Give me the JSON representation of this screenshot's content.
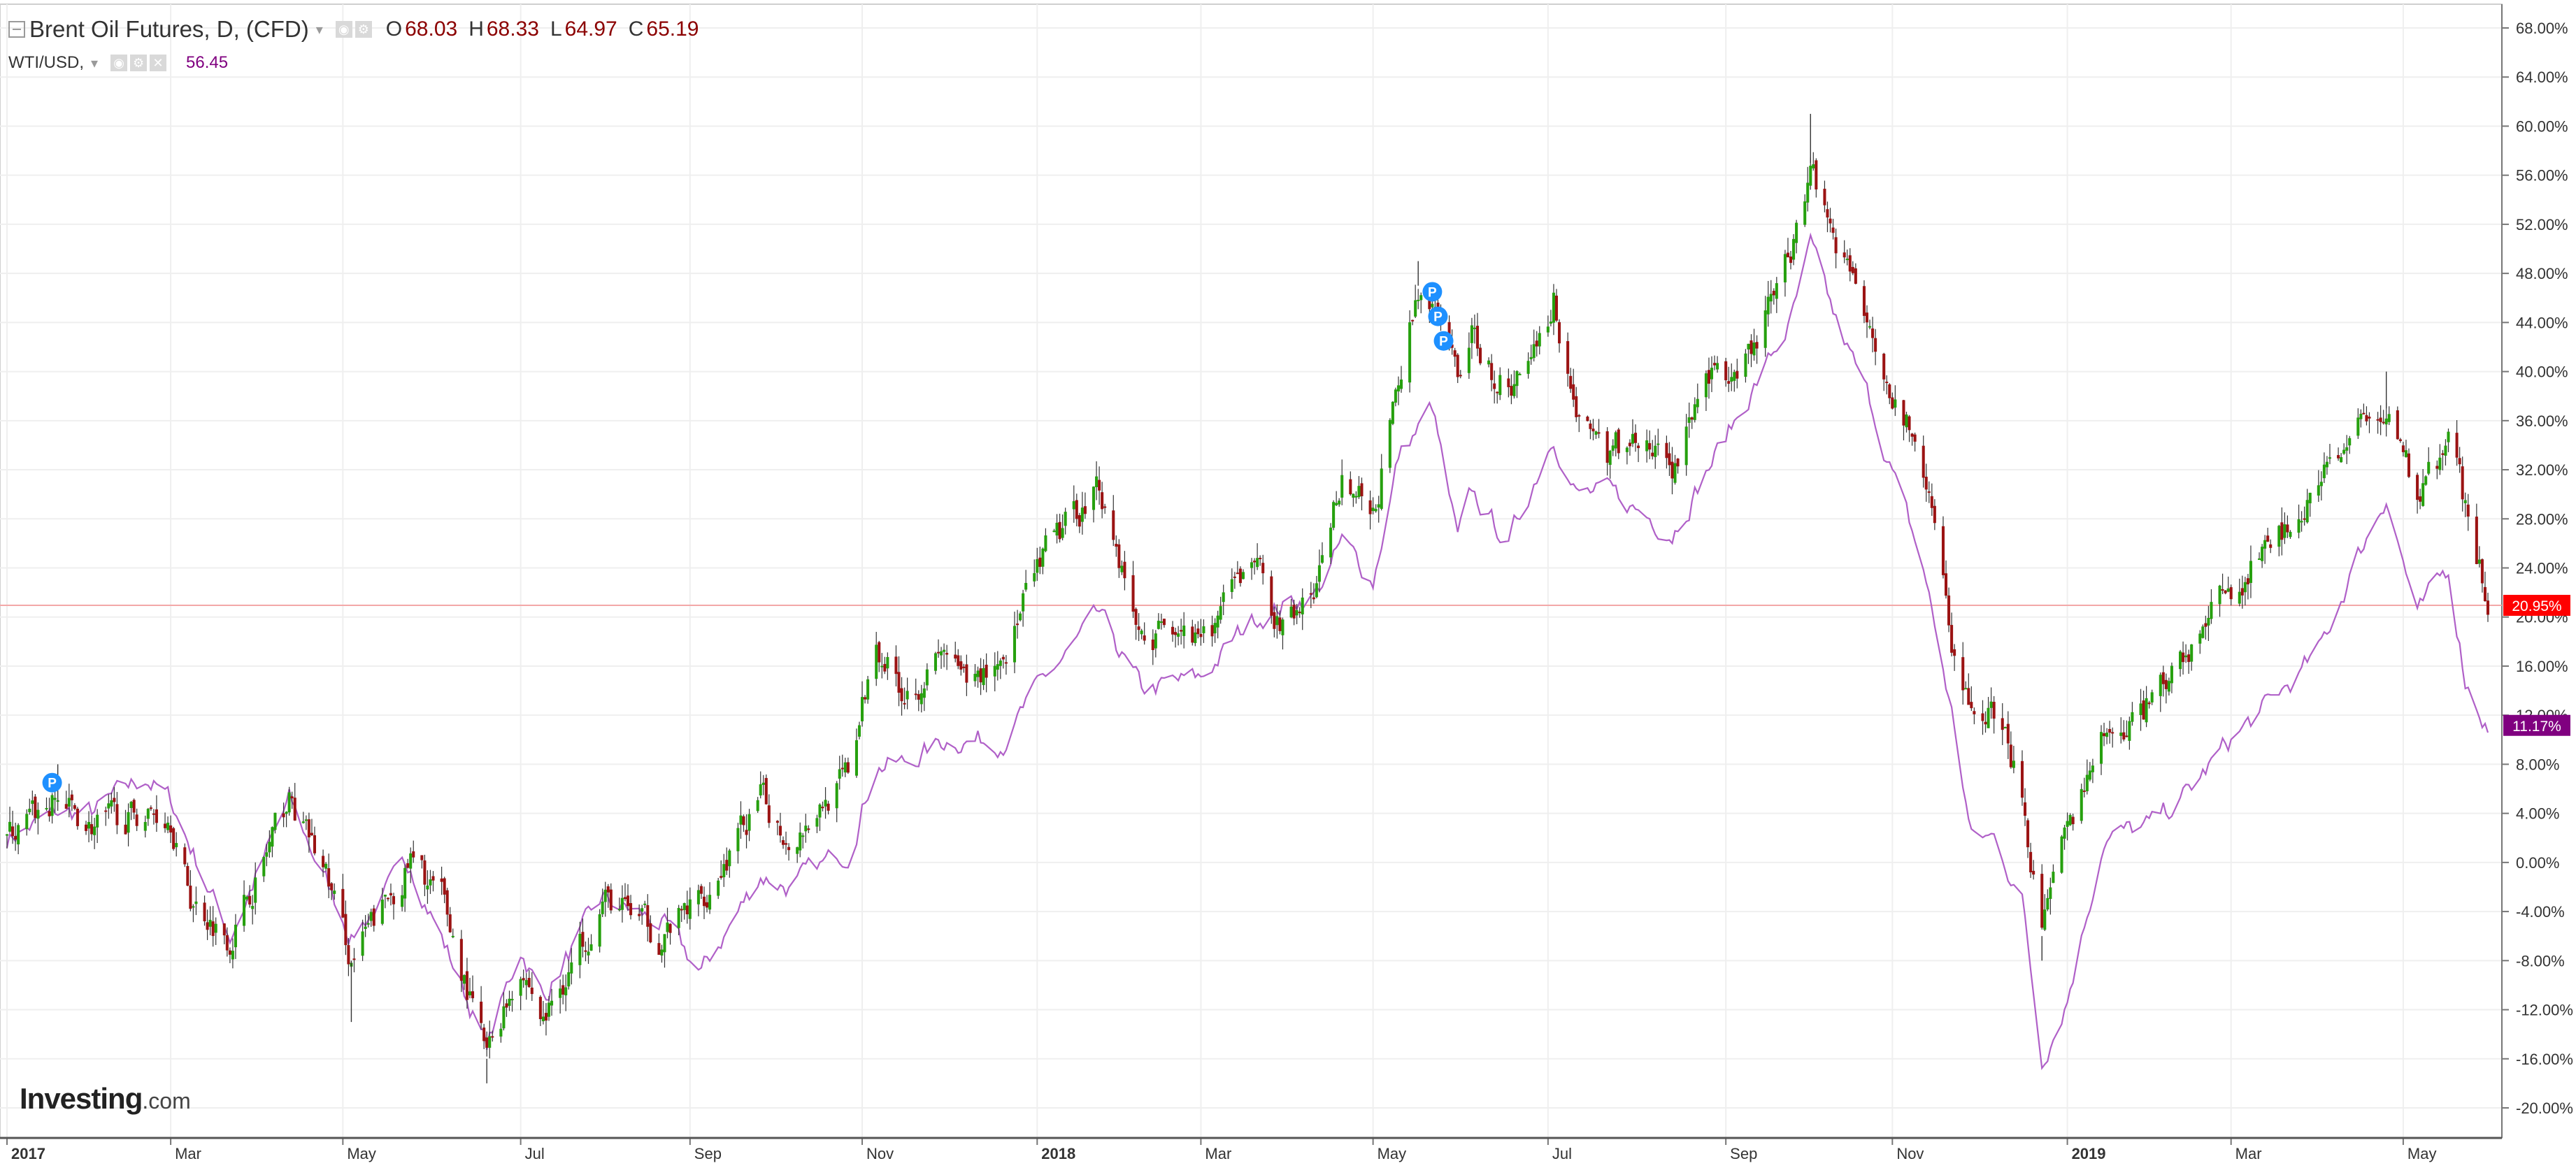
{
  "header": {
    "symbol": "Brent Oil Futures, D, (CFD)",
    "ohlc": [
      {
        "label": "O",
        "value": "68.03"
      },
      {
        "label": "H",
        "value": "68.33"
      },
      {
        "label": "L",
        "value": "64.97"
      },
      {
        "label": "C",
        "value": "65.19"
      }
    ],
    "compare_symbol": "WTI/USD,",
    "compare_price": "56.45"
  },
  "watermark": {
    "brand": "Investing",
    "tld": ".com"
  },
  "colors": {
    "up": "#26a00e",
    "down": "#9b1313",
    "wti_line": "#b060c8",
    "grid": "#efefef",
    "hline": "#f3a8a8",
    "brent_badge": "#ff0000",
    "wti_badge": "#800080",
    "event_marker": "#1e90ff"
  },
  "chart_data": {
    "type": "candlestick",
    "y_unit": "%",
    "ylim": [
      -22,
      70
    ],
    "yticks": [
      "68.00%",
      "64.00%",
      "60.00%",
      "56.00%",
      "52.00%",
      "48.00%",
      "44.00%",
      "40.00%",
      "36.00%",
      "32.00%",
      "28.00%",
      "24.00%",
      "20.00%",
      "16.00%",
      "12.00%",
      "8.00%",
      "4.00%",
      "0.00%",
      "-4.00%",
      "-8.00%",
      "-12.00%",
      "-16.00%",
      "-20.00%"
    ],
    "x_range": [
      "2017-01-02",
      "2019-05-31"
    ],
    "x_ticks": [
      {
        "date": "2017-01-02",
        "label": "2017",
        "bold": true
      },
      {
        "date": "2017-03-01",
        "label": "Mar"
      },
      {
        "date": "2017-05-01",
        "label": "May"
      },
      {
        "date": "2017-07-03",
        "label": "Jul"
      },
      {
        "date": "2017-09-01",
        "label": "Sep"
      },
      {
        "date": "2017-11-01",
        "label": "Nov"
      },
      {
        "date": "2018-01-02",
        "label": "2018",
        "bold": true
      },
      {
        "date": "2018-03-01",
        "label": "Mar"
      },
      {
        "date": "2018-05-01",
        "label": "May"
      },
      {
        "date": "2018-07-02",
        "label": "Jul"
      },
      {
        "date": "2018-09-03",
        "label": "Sep"
      },
      {
        "date": "2018-11-01",
        "label": "Nov"
      },
      {
        "date": "2019-01-02",
        "label": "2019",
        "bold": true
      },
      {
        "date": "2019-03-01",
        "label": "Mar"
      },
      {
        "date": "2019-05-01",
        "label": "May"
      }
    ],
    "series": [
      {
        "name": "Brent Oil Futures, D, (CFD)",
        "style": "candles",
        "last_label": "20.95%",
        "last_value": 20.95,
        "anchors": [
          [
            "2017-01-02",
            2
          ],
          [
            "2017-01-20",
            5
          ],
          [
            "2017-02-01",
            3
          ],
          [
            "2017-02-20",
            4
          ],
          [
            "2017-03-01",
            4
          ],
          [
            "2017-03-08",
            -3
          ],
          [
            "2017-03-22",
            -6
          ],
          [
            "2017-04-12",
            5
          ],
          [
            "2017-04-25",
            -1
          ],
          [
            "2017-05-04",
            -8
          ],
          [
            "2017-05-25",
            0
          ],
          [
            "2017-06-05",
            -3
          ],
          [
            "2017-06-21",
            -16
          ],
          [
            "2017-07-03",
            -8
          ],
          [
            "2017-07-11",
            -13
          ],
          [
            "2017-08-01",
            -3
          ],
          [
            "2017-08-10",
            -4
          ],
          [
            "2017-08-22",
            -6
          ],
          [
            "2017-09-05",
            -3
          ],
          [
            "2017-09-26",
            5
          ],
          [
            "2017-10-06",
            2
          ],
          [
            "2017-10-27",
            7
          ],
          [
            "2017-11-06",
            18
          ],
          [
            "2017-11-16",
            14
          ],
          [
            "2017-12-01",
            17
          ],
          [
            "2017-12-08",
            14
          ],
          [
            "2017-12-21",
            17
          ],
          [
            "2018-01-05",
            25
          ],
          [
            "2018-01-24",
            31
          ],
          [
            "2018-02-08",
            18
          ],
          [
            "2018-02-23",
            20
          ],
          [
            "2018-03-01",
            17
          ],
          [
            "2018-03-20",
            25
          ],
          [
            "2018-03-29",
            19
          ],
          [
            "2018-04-11",
            22
          ],
          [
            "2018-04-20",
            32
          ],
          [
            "2018-05-01",
            28
          ],
          [
            "2018-05-17",
            47
          ],
          [
            "2018-05-31",
            40
          ],
          [
            "2018-06-05",
            43
          ],
          [
            "2018-06-18",
            38
          ],
          [
            "2018-07-04",
            46
          ],
          [
            "2018-07-12",
            37
          ],
          [
            "2018-07-24",
            33
          ],
          [
            "2018-08-01",
            35
          ],
          [
            "2018-08-15",
            32
          ],
          [
            "2018-08-30",
            41
          ],
          [
            "2018-09-07",
            38
          ],
          [
            "2018-09-26",
            50
          ],
          [
            "2018-10-03",
            57
          ],
          [
            "2018-10-12",
            51
          ],
          [
            "2018-10-25",
            44
          ],
          [
            "2018-11-02",
            38
          ],
          [
            "2018-11-12",
            32
          ],
          [
            "2018-11-23",
            17
          ],
          [
            "2018-11-29",
            12
          ],
          [
            "2018-12-07",
            12
          ],
          [
            "2018-12-17",
            6
          ],
          [
            "2018-12-24",
            -6
          ],
          [
            "2019-01-02",
            2
          ],
          [
            "2019-01-15",
            10
          ],
          [
            "2019-02-01",
            13
          ],
          [
            "2019-02-15",
            18
          ],
          [
            "2019-03-01",
            22
          ],
          [
            "2019-03-15",
            26
          ],
          [
            "2019-04-01",
            31
          ],
          [
            "2019-04-15",
            35
          ],
          [
            "2019-04-25",
            37
          ],
          [
            "2019-05-06",
            30
          ],
          [
            "2019-05-17",
            34
          ],
          [
            "2019-05-23",
            29
          ],
          [
            "2019-05-31",
            21
          ]
        ],
        "high_marks": [
          [
            "2017-01-20",
            8
          ],
          [
            "2018-10-03",
            61
          ],
          [
            "2019-04-25",
            40
          ],
          [
            "2018-05-17",
            49
          ]
        ],
        "low_marks": [
          [
            "2017-06-21",
            -18
          ],
          [
            "2018-12-24",
            -8
          ],
          [
            "2017-05-04",
            -13
          ]
        ]
      },
      {
        "name": "WTI/USD",
        "style": "line",
        "last_label": "11.17%",
        "last_value": 11.17,
        "anchors": [
          [
            "2017-01-02",
            2
          ],
          [
            "2017-01-20",
            4
          ],
          [
            "2017-02-01",
            4
          ],
          [
            "2017-02-20",
            7
          ],
          [
            "2017-03-01",
            5
          ],
          [
            "2017-03-22",
            -6
          ],
          [
            "2017-04-12",
            5
          ],
          [
            "2017-05-04",
            -6
          ],
          [
            "2017-05-25",
            0
          ],
          [
            "2017-06-21",
            -15
          ],
          [
            "2017-07-03",
            -7
          ],
          [
            "2017-07-11",
            -11
          ],
          [
            "2017-08-01",
            -3
          ],
          [
            "2017-08-22",
            -5
          ],
          [
            "2017-09-05",
            -9
          ],
          [
            "2017-09-26",
            -1
          ],
          [
            "2017-10-06",
            -2
          ],
          [
            "2017-10-27",
            1
          ],
          [
            "2017-11-06",
            8
          ],
          [
            "2017-11-16",
            8
          ],
          [
            "2017-12-01",
            10
          ],
          [
            "2017-12-21",
            10
          ],
          [
            "2018-01-05",
            15
          ],
          [
            "2018-01-24",
            20
          ],
          [
            "2018-02-08",
            14
          ],
          [
            "2018-03-01",
            15
          ],
          [
            "2018-03-20",
            20
          ],
          [
            "2018-04-11",
            22
          ],
          [
            "2018-04-20",
            26
          ],
          [
            "2018-05-01",
            23
          ],
          [
            "2018-05-10",
            33
          ],
          [
            "2018-05-22",
            37
          ],
          [
            "2018-05-31",
            26
          ],
          [
            "2018-06-05",
            30
          ],
          [
            "2018-06-18",
            26
          ],
          [
            "2018-07-04",
            35
          ],
          [
            "2018-07-12",
            30
          ],
          [
            "2018-07-24",
            30
          ],
          [
            "2018-08-15",
            27
          ],
          [
            "2018-08-30",
            33
          ],
          [
            "2018-09-26",
            44
          ],
          [
            "2018-10-03",
            50
          ],
          [
            "2018-10-12",
            44
          ],
          [
            "2018-10-25",
            37
          ],
          [
            "2018-11-02",
            31
          ],
          [
            "2018-11-12",
            24
          ],
          [
            "2018-11-23",
            11
          ],
          [
            "2018-11-29",
            2
          ],
          [
            "2018-12-07",
            2
          ],
          [
            "2018-12-17",
            -3
          ],
          [
            "2018-12-24",
            -16
          ],
          [
            "2019-01-02",
            -11
          ],
          [
            "2019-01-15",
            2
          ],
          [
            "2019-02-01",
            3
          ],
          [
            "2019-02-15",
            6
          ],
          [
            "2019-03-01",
            10
          ],
          [
            "2019-03-15",
            13
          ],
          [
            "2019-04-01",
            17
          ],
          [
            "2019-04-15",
            25
          ],
          [
            "2019-04-25",
            30
          ],
          [
            "2019-05-06",
            20
          ],
          [
            "2019-05-17",
            24
          ],
          [
            "2019-05-23",
            15
          ],
          [
            "2019-05-31",
            11
          ]
        ]
      }
    ],
    "horizontal_line": {
      "value": 20.95
    },
    "event_markers": [
      {
        "date": "2017-01-18",
        "value": 6.5,
        "label": "P"
      },
      {
        "date": "2018-05-22",
        "value": 46.5,
        "label": "P"
      },
      {
        "date": "2018-05-24",
        "value": 44.5,
        "label": "P"
      },
      {
        "date": "2018-05-26",
        "value": 42.5,
        "label": "P"
      }
    ],
    "grid": true,
    "legend": "top-left"
  }
}
